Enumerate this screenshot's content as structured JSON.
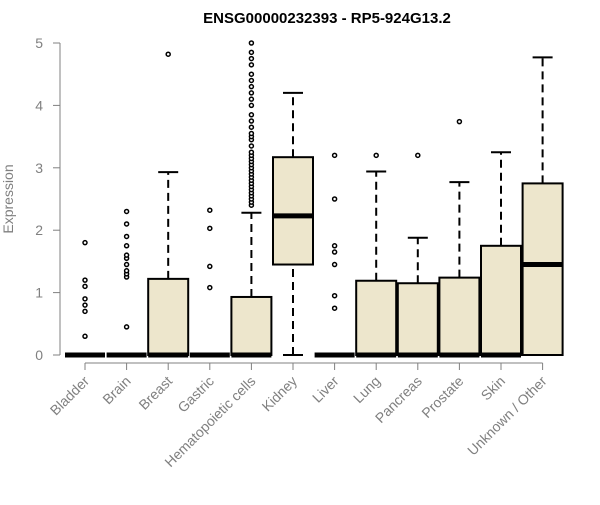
{
  "chart_data": {
    "type": "box",
    "title": "ENSG00000232393 - RP5-924G13.2",
    "xlabel": "",
    "ylabel": "Expression",
    "ylim": [
      0,
      5
    ],
    "yticks": [
      0,
      1,
      2,
      3,
      4,
      5
    ],
    "grid": false,
    "legend": "none",
    "box_fill": "#ede6cc",
    "box_stroke": "#000000",
    "axis_color": "#808080",
    "categories": [
      "Bladder",
      "Brain",
      "Breast",
      "Gastric",
      "Hematopoietic cells",
      "Kidney",
      "Liver",
      "Lung",
      "Pancreas",
      "Prostate",
      "Skin",
      "Unknown / Other"
    ],
    "boxes": [
      {
        "label": "Bladder",
        "min": 0,
        "q1": 0,
        "median": 0,
        "q3": 0,
        "max": 0,
        "outliers": [
          0.3,
          0.7,
          0.8,
          0.9,
          1.1,
          1.2,
          1.8
        ]
      },
      {
        "label": "Brain",
        "min": 0,
        "q1": 0,
        "median": 0,
        "q3": 0,
        "max": 0,
        "outliers": [
          0.45,
          1.25,
          1.3,
          1.35,
          1.45,
          1.55,
          1.6,
          1.75,
          1.9,
          2.1,
          2.3
        ]
      },
      {
        "label": "Breast",
        "min": 0,
        "q1": 0,
        "median": 0,
        "q3": 1.22,
        "max": 2.93,
        "outliers": [
          4.82
        ]
      },
      {
        "label": "Gastric",
        "min": 0,
        "q1": 0,
        "median": 0,
        "q3": 0,
        "max": 0,
        "outliers": [
          1.08,
          1.42,
          2.03,
          2.32
        ]
      },
      {
        "label": "Hematopoietic cells",
        "min": 0,
        "q1": 0,
        "median": 0,
        "q3": 0.93,
        "max": 2.28,
        "outliers": [
          2.4,
          2.45,
          2.5,
          2.55,
          2.6,
          2.65,
          2.7,
          2.75,
          2.8,
          2.85,
          2.9,
          2.95,
          3.0,
          3.05,
          3.1,
          3.15,
          3.2,
          3.25,
          3.35,
          3.45,
          3.5,
          3.55,
          3.65,
          3.75,
          3.85,
          4.0,
          4.1,
          4.2,
          4.3,
          4.4,
          4.5,
          4.65,
          4.75,
          4.85,
          5.0
        ]
      },
      {
        "label": "Kidney",
        "min": 0,
        "q1": 1.45,
        "median": 2.23,
        "q3": 3.17,
        "max": 4.2,
        "outliers": []
      },
      {
        "label": "Liver",
        "min": 0,
        "q1": 0,
        "median": 0,
        "q3": 0,
        "max": 0,
        "outliers": [
          0.75,
          0.95,
          1.45,
          1.65,
          1.75,
          2.5,
          3.2
        ]
      },
      {
        "label": "Lung",
        "min": 0,
        "q1": 0,
        "median": 0,
        "q3": 1.19,
        "max": 2.94,
        "outliers": [
          3.2
        ]
      },
      {
        "label": "Pancreas",
        "min": 0,
        "q1": 0,
        "median": 0,
        "q3": 1.15,
        "max": 1.88,
        "outliers": [
          3.2
        ]
      },
      {
        "label": "Prostate",
        "min": 0,
        "q1": 0,
        "median": 0,
        "q3": 1.24,
        "max": 2.77,
        "outliers": [
          3.74
        ]
      },
      {
        "label": "Skin",
        "min": 0,
        "q1": 0,
        "median": 0,
        "q3": 1.75,
        "max": 3.25,
        "outliers": []
      },
      {
        "label": "Unknown / Other",
        "min": 0,
        "q1": 0,
        "median": 1.45,
        "q3": 2.75,
        "max": 4.77,
        "outliers": []
      }
    ]
  }
}
